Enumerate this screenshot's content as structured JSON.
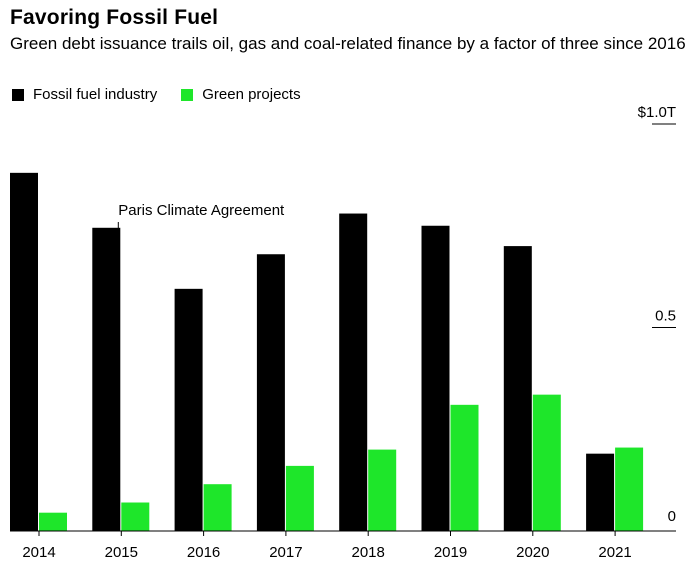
{
  "header": {
    "title": "Favoring Fossil Fuel",
    "subtitle": "Green debt issuance trails oil, gas and coal-related finance by a factor of three since 2016"
  },
  "legend": {
    "items": [
      {
        "label": "Fossil fuel industry",
        "color": "#000000"
      },
      {
        "label": "Green projects",
        "color": "#1ee62a"
      }
    ]
  },
  "chart_data": {
    "type": "bar",
    "title": "Favoring Fossil Fuel",
    "subtitle": "Green debt issuance trails oil, gas and coal-related finance by a factor of three since 2016",
    "categories": [
      "2014",
      "2015",
      "2016",
      "2017",
      "2018",
      "2019",
      "2020",
      "2021"
    ],
    "series": [
      {
        "name": "Fossil fuel industry",
        "color": "#000000",
        "values": [
          0.88,
          0.745,
          0.595,
          0.68,
          0.78,
          0.75,
          0.7,
          0.19
        ]
      },
      {
        "name": "Green projects",
        "color": "#1ee62a",
        "values": [
          0.045,
          0.07,
          0.115,
          0.16,
          0.2,
          0.31,
          0.335,
          0.205
        ]
      }
    ],
    "ylim": [
      0,
      1.0
    ],
    "yticks": [
      {
        "value": 1.0,
        "label": "$1.0T"
      },
      {
        "value": 0.5,
        "label": "0.5"
      },
      {
        "value": 0,
        "label": "0"
      }
    ],
    "xlabel": "",
    "ylabel": "",
    "y_axis_position": "right",
    "legend_position": "top-left",
    "grid": false,
    "annotations": [
      {
        "text": "Paris Climate Agreement",
        "category": "2015"
      }
    ]
  }
}
